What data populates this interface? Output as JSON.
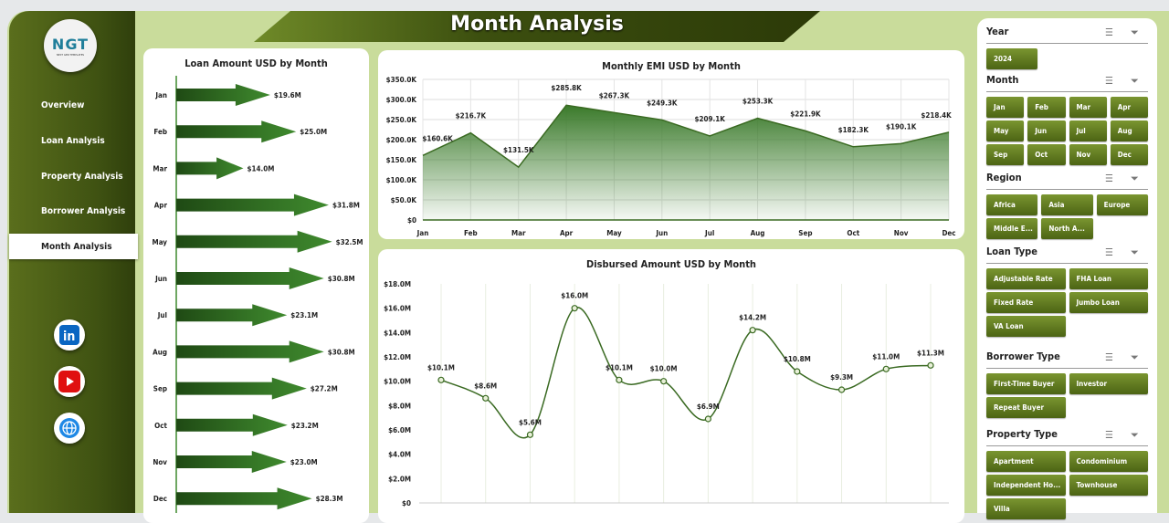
{
  "title": "Month Analysis",
  "logo": {
    "text": "NGT",
    "subtitle": "NEXT GEN TEMPLATES"
  },
  "nav": [
    {
      "label": "Overview"
    },
    {
      "label": "Loan Analysis"
    },
    {
      "label": "Property  Analysis"
    },
    {
      "label": "Borrower Analysis"
    },
    {
      "label": "Month Analysis",
      "active": true
    }
  ],
  "social": [
    "linkedin-icon",
    "youtube-icon",
    "globe-icon"
  ],
  "slicers": [
    {
      "title": "Year",
      "items": [
        "2024"
      ]
    },
    {
      "title": "Month",
      "items": [
        "Jan",
        "Feb",
        "Mar",
        "Apr",
        "May",
        "Jun",
        "Jul",
        "Aug",
        "Sep",
        "Oct",
        "Nov",
        "Dec"
      ]
    },
    {
      "title": "Region",
      "items": [
        "Africa",
        "Asia",
        "Europe",
        "Middle E...",
        "North A..."
      ]
    },
    {
      "title": "Loan Type",
      "items": [
        "Adjustable Rate",
        "FHA Loan",
        "Fixed Rate",
        "Jumbo Loan",
        "VA Loan"
      ]
    },
    {
      "title": "Borrower Type",
      "items": [
        "First-Time Buyer",
        "Investor",
        "Repeat Buyer"
      ]
    },
    {
      "title": "Property Type",
      "items": [
        "Apartment",
        "Condominium",
        "Independent Ho...",
        "Townhouse",
        "Villa"
      ]
    }
  ],
  "colors": {
    "accent": "#3f5212",
    "background": "#c9dc9b",
    "series": "#3a7a2a"
  },
  "chart_data": [
    {
      "type": "bar",
      "orientation": "horizontal",
      "title": "Loan Amount USD by Month",
      "categories": [
        "Jan",
        "Feb",
        "Mar",
        "Apr",
        "May",
        "Jun",
        "Jul",
        "Aug",
        "Sep",
        "Oct",
        "Nov",
        "Dec"
      ],
      "values": [
        19.6,
        25.0,
        14.0,
        31.8,
        32.5,
        30.8,
        23.1,
        30.8,
        27.2,
        23.2,
        23.0,
        28.3
      ],
      "labels": [
        "$19.6M",
        "$25.0M",
        "$14.0M",
        "$31.8M",
        "$32.5M",
        "$30.8M",
        "$23.1M",
        "$30.8M",
        "$27.2M",
        "$23.2M",
        "$23.0M",
        "$28.3M"
      ]
    },
    {
      "type": "area",
      "title": "Monthly EMI USD by Month",
      "categories": [
        "Jan",
        "Feb",
        "Mar",
        "Apr",
        "May",
        "Jun",
        "Jul",
        "Aug",
        "Sep",
        "Oct",
        "Nov",
        "Dec"
      ],
      "values": [
        160.6,
        216.7,
        131.5,
        285.8,
        267.3,
        249.3,
        209.1,
        253.3,
        221.9,
        182.3,
        190.1,
        218.4
      ],
      "labels": [
        "$160.6K",
        "$216.7K",
        "$131.5K",
        "$285.8K",
        "$267.3K",
        "$249.3K",
        "$209.1K",
        "$253.3K",
        "$221.9K",
        "$182.3K",
        "$190.1K",
        "$218.4K"
      ],
      "ylim": [
        0,
        350
      ],
      "yticks": [
        "$0",
        "$50.0K",
        "$100.0K",
        "$150.0K",
        "$200.0K",
        "$250.0K",
        "$300.0K",
        "$350.0K"
      ],
      "grid": true
    },
    {
      "type": "line",
      "smooth": true,
      "title": "Disbursed Amount USD by Month",
      "categories": [
        "Jan",
        "Feb",
        "Mar",
        "Apr",
        "May",
        "Jun",
        "Jul",
        "Aug",
        "Sep",
        "Oct",
        "Nov",
        "Dec"
      ],
      "values": [
        10.1,
        8.6,
        5.6,
        16.0,
        10.1,
        10.0,
        6.9,
        14.2,
        10.8,
        9.3,
        11.0,
        11.3
      ],
      "labels": [
        "$10.1M",
        "$8.6M",
        "$5.6M",
        "$16.0M",
        "$10.1M",
        "$10.0M",
        "$6.9M",
        "$14.2M",
        "$10.8M",
        "$9.3M",
        "$11.0M",
        "$11.3M"
      ],
      "ylim": [
        0,
        18
      ],
      "yticks": [
        "$0",
        "$2.0M",
        "$4.0M",
        "$6.0M",
        "$8.0M",
        "$10.0M",
        "$12.0M",
        "$14.0M",
        "$16.0M",
        "$18.0M"
      ],
      "grid": true
    }
  ]
}
